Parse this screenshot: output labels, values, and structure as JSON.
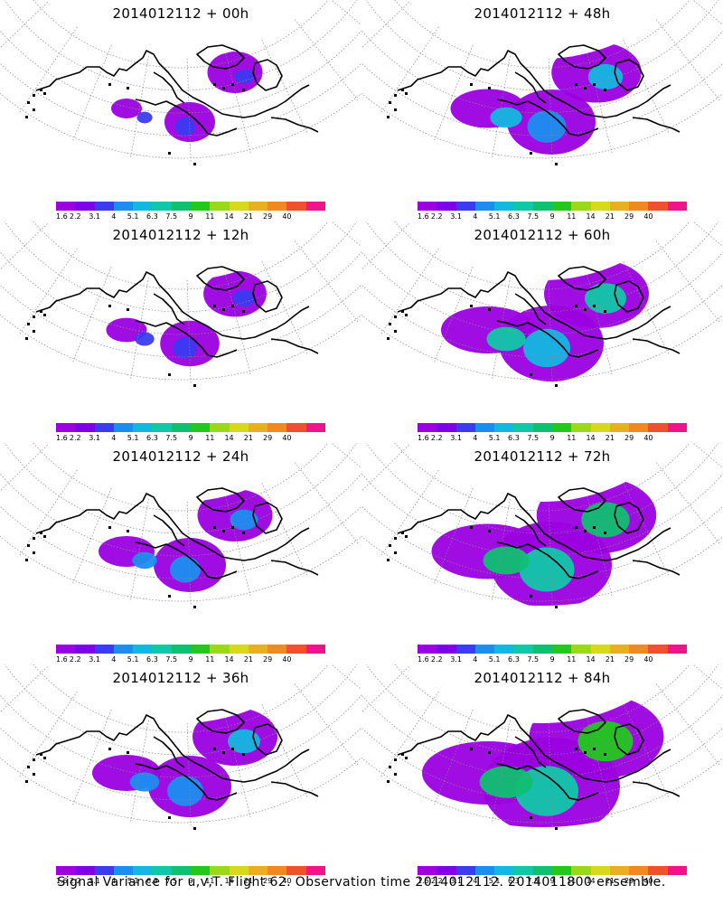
{
  "panels": [
    {
      "title": "2014012112 + 00h",
      "intensity": 0.1
    },
    {
      "title": "2014012112 + 48h",
      "intensity": 0.45
    },
    {
      "title": "2014012112 + 12h",
      "intensity": 0.18
    },
    {
      "title": "2014012112 + 60h",
      "intensity": 0.6
    },
    {
      "title": "2014012112 + 24h",
      "intensity": 0.3
    },
    {
      "title": "2014012112 + 72h",
      "intensity": 0.75
    },
    {
      "title": "2014012112 + 36h",
      "intensity": 0.4
    },
    {
      "title": "2014012112 + 84h",
      "intensity": 0.9
    }
  ],
  "colorbar": {
    "colors": [
      "#9b00e0",
      "#7d00e8",
      "#3b3bf0",
      "#1c8ef0",
      "#12b8e0",
      "#10c8a8",
      "#0ec070",
      "#22c81c",
      "#9ad81a",
      "#d8d81c",
      "#e8b020",
      "#f08a20",
      "#f05030",
      "#f0148a"
    ],
    "labels": [
      "1.6",
      "2.2",
      "3.1",
      "4",
      "5.1",
      "6.3",
      "7.5",
      "9",
      "11",
      "14",
      "21",
      "29",
      "40"
    ]
  },
  "caption": "Signal Variance for u,v,T. Flight 62. Observation time 2014012112. 2014011800 ensemble."
}
